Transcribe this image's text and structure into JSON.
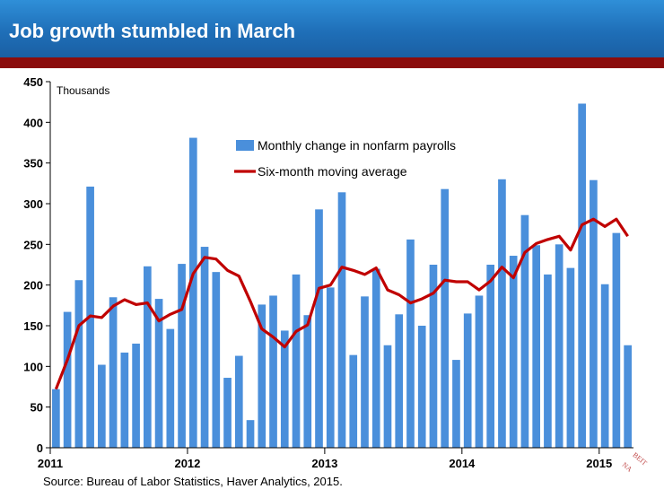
{
  "header": {
    "title": "Job growth stumbled in March"
  },
  "colors": {
    "header_blue": "#1f6fb8",
    "band_red": "#8b0c0c",
    "bar_blue": "#4a8fdb",
    "line_red": "#c00000"
  },
  "source": "Source: Bureau of Labor Statistics, Haver Analytics, 2015.",
  "logo": {
    "text": "BEIT NA...",
    "icon": "fed-seal-icon"
  },
  "chart_data": {
    "type": "bar",
    "title": "",
    "unit_label": "Thousands",
    "ylim": [
      0,
      450
    ],
    "yticks": [
      0,
      50,
      100,
      150,
      200,
      250,
      300,
      350,
      400,
      450
    ],
    "year_ticks": [
      {
        "label": "2011",
        "index": 0
      },
      {
        "label": "2012",
        "index": 12
      },
      {
        "label": "2013",
        "index": 24
      },
      {
        "label": "2014",
        "index": 36
      },
      {
        "label": "2015",
        "index": 48
      }
    ],
    "legend_placement": "top-center",
    "series": [
      {
        "name": "Monthly change in nonfarm payrolls",
        "type": "bar",
        "values": [
          72,
          167,
          206,
          321,
          102,
          185,
          117,
          128,
          223,
          183,
          146,
          226,
          381,
          247,
          216,
          86,
          113,
          34,
          176,
          187,
          144,
          213,
          163,
          293,
          197,
          314,
          114,
          186,
          220,
          126,
          164,
          256,
          150,
          225,
          318,
          108,
          165,
          187,
          225,
          330,
          236,
          286,
          249,
          213,
          250,
          221,
          423,
          329,
          201,
          264,
          126
        ]
      },
      {
        "name": "Six-month moving average",
        "type": "line",
        "values": [
          72,
          108,
          150,
          162,
          160,
          174,
          182,
          176,
          178,
          156,
          164,
          170,
          214,
          234,
          232,
          218,
          211,
          180,
          146,
          136,
          124,
          143,
          151,
          196,
          200,
          222,
          218,
          213,
          221,
          194,
          188,
          178,
          183,
          190,
          206,
          204,
          204,
          194,
          205,
          222,
          209,
          240,
          251,
          256,
          260,
          243,
          274,
          281,
          272,
          281,
          260
        ]
      }
    ]
  }
}
